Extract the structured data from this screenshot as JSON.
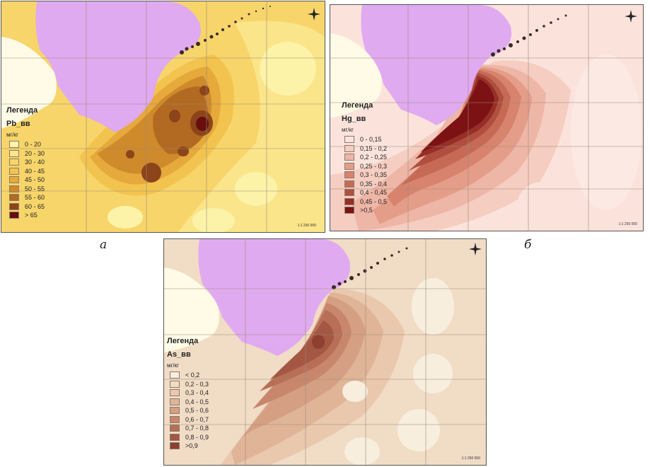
{
  "panels": {
    "a": {
      "caption": "а",
      "legend_title": "Легенда",
      "layer": "Pb_вв",
      "unit": "мг/кг",
      "scale": "1:1 250 000",
      "classes": [
        {
          "label": "0 - 20",
          "color": "#fcf3a8"
        },
        {
          "label": "20 - 30",
          "color": "#fae58a"
        },
        {
          "label": "30 - 40",
          "color": "#f7d56a"
        },
        {
          "label": "40 - 45",
          "color": "#f2c44f"
        },
        {
          "label": "45 - 50",
          "color": "#e5a93c"
        },
        {
          "label": "50 - 55",
          "color": "#cf8a2c"
        },
        {
          "label": "55 - 60",
          "color": "#b26a22"
        },
        {
          "label": "60 - 65",
          "color": "#8c441a"
        },
        {
          "label": "> 65",
          "color": "#6a0d0d"
        }
      ]
    },
    "b": {
      "caption": "б",
      "legend_title": "Легенда",
      "layer": "Hg_вв",
      "unit": "мг/кг",
      "scale": "1:1 250 000",
      "classes": [
        {
          "label": "0 - 0,15",
          "color": "#fbe3dc"
        },
        {
          "label": "0,15 - 0,2",
          "color": "#f5cdc1"
        },
        {
          "label": "0,2 - 0,25",
          "color": "#eeb6a6"
        },
        {
          "label": "0,25 - 0,3",
          "color": "#e49d89"
        },
        {
          "label": "0,3 - 0,35",
          "color": "#d7836e"
        },
        {
          "label": "0,35 - 0,4",
          "color": "#c66a56"
        },
        {
          "label": "0,4 - 0,45",
          "color": "#b04f3f"
        },
        {
          "label": "0,45 - 0,5",
          "color": "#962f28"
        },
        {
          "label": ">0,5",
          "color": "#7c1214"
        }
      ]
    },
    "c": {
      "legend_title": "Легенда",
      "layer": "As_вв",
      "unit": "мг/кг",
      "scale": "1:1 250 000",
      "classes": [
        {
          "label": "< 0,2",
          "color": "#f8eede"
        },
        {
          "label": "0,2 - 0,3",
          "color": "#f1dcc6"
        },
        {
          "label": "0,3 - 0,4",
          "color": "#e9c8ae"
        },
        {
          "label": "0,4 - 0,5",
          "color": "#e0b497"
        },
        {
          "label": "0,5 - 0,6",
          "color": "#d59f83"
        },
        {
          "label": "0,6 - 0,7",
          "color": "#c8876c"
        },
        {
          "label": "0,7 - 0,8",
          "color": "#b86f57"
        },
        {
          "label": "0,8 - 0,9",
          "color": "#a45743"
        },
        {
          "label": ">0,9",
          "color": "#8e3f30"
        }
      ]
    }
  },
  "map_colors": {
    "land_region": "#e0aaf0",
    "land_other": "#fffbe6",
    "coast_islands": "#3a2a2a"
  }
}
